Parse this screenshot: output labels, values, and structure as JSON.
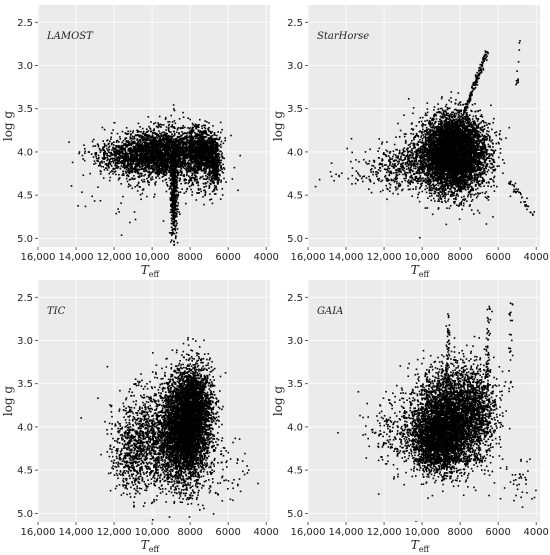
{
  "chart_data": [
    {
      "type": "scatter",
      "title": "LAMOST",
      "xlabel": "T",
      "xlabel_sub": "eff",
      "ylabel": "log g",
      "xlim": [
        16000,
        3800
      ],
      "ylim": [
        5.1,
        2.3
      ],
      "x_ticks": [
        16000,
        14000,
        12000,
        10000,
        8000,
        6000,
        4000
      ],
      "x_tick_labels": [
        "16,000",
        "14,000",
        "12,000",
        "10,000",
        "8000",
        "6000",
        "4000"
      ],
      "y_ticks": [
        2.5,
        3.0,
        3.5,
        4.0,
        4.5,
        5.0
      ],
      "y_tick_labels": [
        "2.5",
        "3.0",
        "3.5",
        "4.0",
        "4.5",
        "5.0"
      ],
      "grid": true,
      "clusters": [
        {
          "x": [
            9500,
            1100
          ],
          "y": [
            4.02,
            0.14
          ],
          "n": 2600
        },
        {
          "x": [
            11500,
            900
          ],
          "y": [
            4.06,
            0.1
          ],
          "n": 500
        },
        {
          "x": [
            7400,
            450
          ],
          "y": [
            3.98,
            0.12
          ],
          "n": 1100
        },
        {
          "x": [
            8850,
            90
          ],
          "y": [
            4.45,
            0.28
          ],
          "n": 500
        },
        {
          "x": [
            6700,
            150
          ],
          "y": [
            4.15,
            0.12
          ],
          "n": 350
        },
        {
          "x": [
            11000,
            1500
          ],
          "y": [
            4.5,
            0.18
          ],
          "n": 60
        },
        {
          "x": [
            7600,
            700
          ],
          "y": [
            4.3,
            0.12
          ],
          "n": 150
        }
      ]
    },
    {
      "type": "scatter",
      "title": "StarHorse",
      "xlabel": "T",
      "xlabel_sub": "eff",
      "ylabel": "log g",
      "xlim": [
        16000,
        3800
      ],
      "ylim": [
        5.1,
        2.3
      ],
      "x_ticks": [
        16000,
        14000,
        12000,
        10000,
        8000,
        6000,
        4000
      ],
      "x_tick_labels": [
        "16,000",
        "14,000",
        "12,000",
        "10,000",
        "8000",
        "6000",
        "4000"
      ],
      "y_ticks": [
        2.5,
        3.0,
        3.5,
        4.0,
        4.5,
        5.0
      ],
      "y_tick_labels": [
        "2.5",
        "3.0",
        "3.5",
        "4.0",
        "4.5",
        "5.0"
      ],
      "grid": true,
      "clusters": [
        {
          "x": [
            8400,
            900
          ],
          "y": [
            4.05,
            0.22
          ],
          "n": 4500
        },
        {
          "x": [
            8200,
            650
          ],
          "y": [
            3.95,
            0.18
          ],
          "n": 2000
        },
        {
          "x": [
            10600,
            1100
          ],
          "y": [
            4.15,
            0.14
          ],
          "n": 500
        },
        {
          "x": [
            12500,
            1300
          ],
          "y": [
            4.3,
            0.1
          ],
          "n": 80
        }
      ],
      "streaks": [
        {
          "x": [
            7800,
            6600
          ],
          "y": [
            3.55,
            2.85
          ],
          "n": 160
        },
        {
          "x": [
            5400,
            4200
          ],
          "y": [
            4.35,
            4.7
          ],
          "n": 40
        },
        {
          "x": [
            5000,
            4800
          ],
          "y": [
            3.2,
            2.5
          ],
          "n": 12
        }
      ]
    },
    {
      "type": "scatter",
      "title": "TIC",
      "xlabel": "T",
      "xlabel_sub": "eff",
      "ylabel": "log g",
      "xlim": [
        16000,
        3800
      ],
      "ylim": [
        5.1,
        2.3
      ],
      "x_ticks": [
        16000,
        14000,
        12000,
        10000,
        8000,
        6000,
        4000
      ],
      "x_tick_labels": [
        "16,000",
        "14,000",
        "12,000",
        "10,000",
        "8000",
        "6000",
        "4000"
      ],
      "y_ticks": [
        2.5,
        3.0,
        3.5,
        4.0,
        4.5,
        5.0
      ],
      "y_tick_labels": [
        "2.5",
        "3.0",
        "3.5",
        "4.0",
        "4.5",
        "5.0"
      ],
      "grid": true,
      "clusters": [
        {
          "x": [
            8300,
            650
          ],
          "y": [
            4.05,
            0.3
          ],
          "n": 4200
        },
        {
          "x": [
            7800,
            500
          ],
          "y": [
            3.75,
            0.25
          ],
          "n": 1600
        },
        {
          "x": [
            10300,
            800
          ],
          "y": [
            4.15,
            0.28
          ],
          "n": 1100
        },
        {
          "x": [
            11300,
            400
          ],
          "y": [
            4.4,
            0.2
          ],
          "n": 200
        },
        {
          "x": [
            6000,
            800
          ],
          "y": [
            4.55,
            0.2
          ],
          "n": 60
        }
      ]
    },
    {
      "type": "scatter",
      "title": "GAIA",
      "xlabel": "T",
      "xlabel_sub": "eff",
      "ylabel": "log g",
      "xlim": [
        16000,
        3800
      ],
      "ylim": [
        5.1,
        2.3
      ],
      "x_ticks": [
        16000,
        14000,
        12000,
        10000,
        8000,
        6000,
        4000
      ],
      "x_tick_labels": [
        "16,000",
        "14,000",
        "12,000",
        "10,000",
        "8000",
        "6000",
        "4000"
      ],
      "y_ticks": [
        2.5,
        3.0,
        3.5,
        4.0,
        4.5,
        5.0
      ],
      "y_tick_labels": [
        "2.5",
        "3.0",
        "3.5",
        "4.0",
        "4.5",
        "5.0"
      ],
      "grid": true,
      "clusters": [
        {
          "x": [
            8600,
            900
          ],
          "y": [
            3.9,
            0.28
          ],
          "n": 3200
        },
        {
          "x": [
            9200,
            700
          ],
          "y": [
            4.15,
            0.18
          ],
          "n": 1800
        },
        {
          "x": [
            7200,
            600
          ],
          "y": [
            3.8,
            0.25
          ],
          "n": 900
        },
        {
          "x": [
            11200,
            900
          ],
          "y": [
            4.05,
            0.22
          ],
          "n": 250
        },
        {
          "x": [
            5000,
            600
          ],
          "y": [
            4.6,
            0.15
          ],
          "n": 40
        }
      ],
      "streaks": [
        {
          "x": [
            8700,
            8600
          ],
          "y": [
            3.6,
            2.7
          ],
          "n": 60
        },
        {
          "x": [
            6600,
            6500
          ],
          "y": [
            3.5,
            2.6
          ],
          "n": 50
        },
        {
          "x": [
            5400,
            5300
          ],
          "y": [
            3.6,
            2.5
          ],
          "n": 25
        },
        {
          "x": [
            10200,
            6800
          ],
          "y": [
            4.38,
            4.38
          ],
          "n": 120
        }
      ]
    }
  ]
}
